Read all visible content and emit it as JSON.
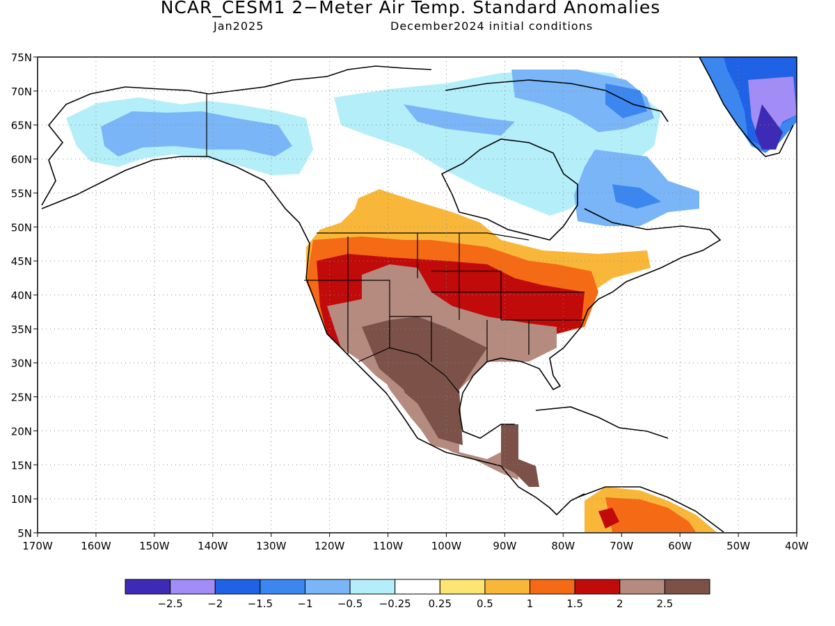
{
  "header": {
    "title": "NCAR_CESM1 2−Meter Air Temp. Standard Anomalies",
    "month": "Jan2025",
    "init": "December2024 initial conditions"
  },
  "map": {
    "lat_labels": [
      "75N",
      "70N",
      "65N",
      "60N",
      "55N",
      "50N",
      "45N",
      "40N",
      "35N",
      "30N",
      "25N",
      "20N",
      "15N",
      "10N",
      "5N"
    ],
    "lon_labels": [
      "170W",
      "160W",
      "150W",
      "140W",
      "130W",
      "120W",
      "110W",
      "100W",
      "90W",
      "80W",
      "70W",
      "60W",
      "50W",
      "40W"
    ],
    "grid": "dotted",
    "extent": {
      "lon": [
        -170,
        -40
      ],
      "lat": [
        5,
        75
      ]
    }
  },
  "legend": {
    "colors": [
      "#3d2bb5",
      "#a28df7",
      "#1f62e6",
      "#3b87ef",
      "#79b5f7",
      "#b4eef9",
      "#ffffff",
      "#fde573",
      "#f9b73a",
      "#f56a14",
      "#c10a0a",
      "#b48b7e",
      "#7b5148"
    ],
    "labels": [
      "−2.5",
      "−2",
      "−1.5",
      "−1",
      "−0.5",
      "−0.25",
      "0.25",
      "0.5",
      "1",
      "1.5",
      "2",
      "2.5"
    ]
  }
}
